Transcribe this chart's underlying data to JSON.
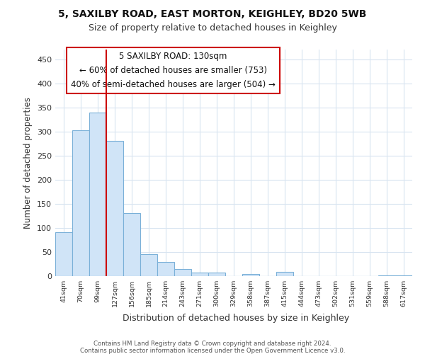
{
  "title_line1": "5, SAXILBY ROAD, EAST MORTON, KEIGHLEY, BD20 5WB",
  "title_line2": "Size of property relative to detached houses in Keighley",
  "xlabel": "Distribution of detached houses by size in Keighley",
  "ylabel": "Number of detached properties",
  "bar_color": "#d0e4f7",
  "bar_edge_color": "#7ab0d8",
  "property_line_color": "#cc0000",
  "annotation_line1": "5 SAXILBY ROAD: 130sqm",
  "annotation_line2": "← 60% of detached houses are smaller (753)",
  "annotation_line3": "40% of semi-detached houses are larger (504) →",
  "categories": [
    "41sqm",
    "70sqm",
    "99sqm",
    "127sqm",
    "156sqm",
    "185sqm",
    "214sqm",
    "243sqm",
    "271sqm",
    "300sqm",
    "329sqm",
    "358sqm",
    "387sqm",
    "415sqm",
    "444sqm",
    "473sqm",
    "502sqm",
    "531sqm",
    "559sqm",
    "588sqm",
    "617sqm"
  ],
  "values": [
    91,
    303,
    340,
    280,
    131,
    46,
    30,
    14,
    7,
    7,
    0,
    5,
    0,
    9,
    0,
    0,
    0,
    0,
    0,
    2,
    2
  ],
  "ylim": [
    0,
    470
  ],
  "yticks": [
    0,
    50,
    100,
    150,
    200,
    250,
    300,
    350,
    400,
    450
  ],
  "bg_color": "#ffffff",
  "plot_bg_color": "#ffffff",
  "grid_color": "#d8e4f0",
  "property_bar_index": 3,
  "footer_line1": "Contains HM Land Registry data © Crown copyright and database right 2024.",
  "footer_line2": "Contains public sector information licensed under the Open Government Licence v3.0."
}
